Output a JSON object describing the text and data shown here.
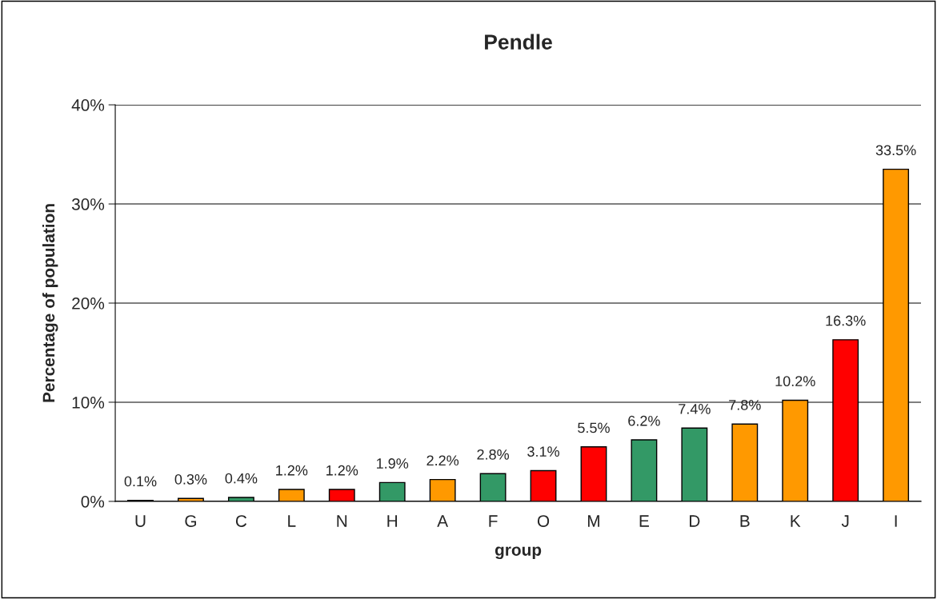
{
  "chart_data": {
    "type": "bar",
    "title": "Pendle",
    "xlabel": "group",
    "ylabel": "Percentage of population",
    "categories": [
      "U",
      "G",
      "C",
      "L",
      "N",
      "H",
      "A",
      "F",
      "O",
      "M",
      "E",
      "D",
      "B",
      "K",
      "J",
      "I"
    ],
    "values": [
      0.1,
      0.3,
      0.4,
      1.2,
      1.2,
      1.9,
      2.2,
      2.8,
      3.1,
      5.5,
      6.2,
      7.4,
      7.8,
      10.2,
      16.3,
      33.5
    ],
    "value_labels": [
      "0.1%",
      "0.3%",
      "0.4%",
      "1.2%",
      "1.2%",
      "1.9%",
      "2.2%",
      "2.8%",
      "3.1%",
      "5.5%",
      "6.2%",
      "7.4%",
      "7.8%",
      "10.2%",
      "16.3%",
      "33.5%"
    ],
    "colors": [
      "#339966",
      "#ff9900",
      "#339966",
      "#ff9900",
      "#ff0000",
      "#339966",
      "#ff9900",
      "#339966",
      "#ff0000",
      "#ff0000",
      "#339966",
      "#339966",
      "#ff9900",
      "#ff9900",
      "#ff0000",
      "#ff9900"
    ],
    "ylim": [
      0,
      40
    ],
    "yticks": [
      {
        "value": 0,
        "label": "0%"
      },
      {
        "value": 10,
        "label": "10%"
      },
      {
        "value": 20,
        "label": "20%"
      },
      {
        "value": 30,
        "label": "30%"
      },
      {
        "value": 40,
        "label": "40%"
      }
    ],
    "grid": "y",
    "legend": false
  }
}
